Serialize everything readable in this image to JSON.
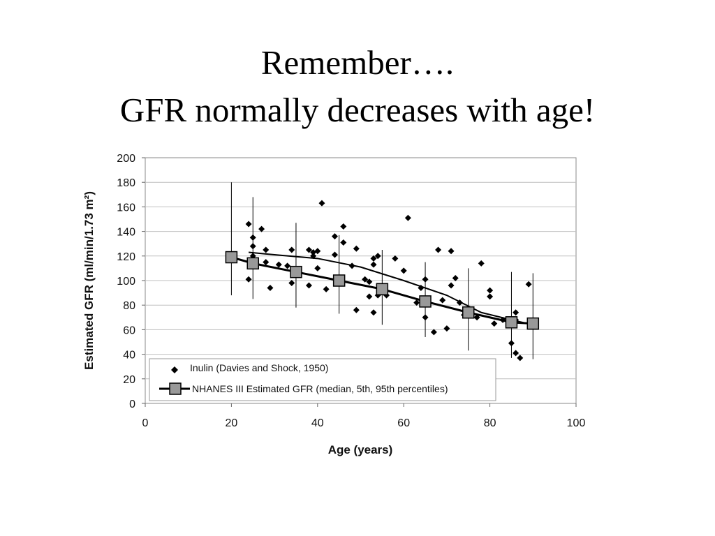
{
  "slide": {
    "title_line1": "Remember….",
    "title_line2": "GFR normally decreases with age!"
  },
  "chart_data": {
    "type": "scatter",
    "xlabel": "Age (years)",
    "ylabel": "Estimated GFR (ml/min/1.73 m²)",
    "xlim": [
      0,
      100
    ],
    "ylim": [
      0,
      200
    ],
    "xticks": [
      0,
      20,
      40,
      60,
      80,
      100
    ],
    "yticks": [
      0,
      20,
      40,
      60,
      80,
      100,
      120,
      140,
      160,
      180,
      200
    ],
    "grid": "horizontal",
    "legend_position": "bottom-left",
    "series": [
      {
        "name": "Inulin (Davies and Shock, 1950)",
        "type": "scatter",
        "marker": "diamond",
        "color": "#000000",
        "points": [
          [
            24,
            146
          ],
          [
            24,
            101
          ],
          [
            25,
            135
          ],
          [
            25,
            128
          ],
          [
            25,
            120
          ],
          [
            27,
            142
          ],
          [
            28,
            125
          ],
          [
            28,
            115
          ],
          [
            29,
            94
          ],
          [
            31,
            113
          ],
          [
            33,
            112
          ],
          [
            34,
            98
          ],
          [
            34,
            125
          ],
          [
            38,
            96
          ],
          [
            38,
            125
          ],
          [
            39,
            120
          ],
          [
            39,
            123
          ],
          [
            40,
            124
          ],
          [
            40,
            110
          ],
          [
            41,
            163
          ],
          [
            42,
            93
          ],
          [
            44,
            136
          ],
          [
            44,
            121
          ],
          [
            46,
            144
          ],
          [
            46,
            131
          ],
          [
            48,
            112
          ],
          [
            49,
            126
          ],
          [
            49,
            76
          ],
          [
            51,
            101
          ],
          [
            52,
            99
          ],
          [
            52,
            87
          ],
          [
            53,
            118
          ],
          [
            53,
            113
          ],
          [
            54,
            120
          ],
          [
            53,
            74
          ],
          [
            54,
            88
          ],
          [
            56,
            88
          ],
          [
            58,
            118
          ],
          [
            60,
            108
          ],
          [
            61,
            151
          ],
          [
            63,
            82
          ],
          [
            64,
            94
          ],
          [
            65,
            70
          ],
          [
            65,
            101
          ],
          [
            67,
            58
          ],
          [
            68,
            125
          ],
          [
            69,
            84
          ],
          [
            70,
            61
          ],
          [
            71,
            124
          ],
          [
            71,
            96
          ],
          [
            72,
            102
          ],
          [
            73,
            82
          ],
          [
            74,
            72
          ],
          [
            77,
            70
          ],
          [
            78,
            114
          ],
          [
            80,
            92
          ],
          [
            80,
            87
          ],
          [
            81,
            65
          ],
          [
            83,
            68
          ],
          [
            85,
            49
          ],
          [
            86,
            74
          ],
          [
            86,
            68
          ],
          [
            86,
            41
          ],
          [
            87,
            37
          ],
          [
            89,
            97
          ]
        ]
      },
      {
        "name": "NHANES III Estimated GFR (median, 5th, 95th percentiles)",
        "type": "line",
        "marker": "square",
        "marker_color": "#999999",
        "color": "#000000",
        "points": [
          {
            "x": 20,
            "median": 119,
            "p5": 88,
            "p95": 180
          },
          {
            "x": 25,
            "median": 114,
            "p5": 85,
            "p95": 168
          },
          {
            "x": 35,
            "median": 107,
            "p5": 78,
            "p95": 147
          },
          {
            "x": 45,
            "median": 100,
            "p5": 73,
            "p95": 137
          },
          {
            "x": 55,
            "median": 93,
            "p5": 64,
            "p95": 125
          },
          {
            "x": 65,
            "median": 83,
            "p5": 54,
            "p95": 115
          },
          {
            "x": 75,
            "median": 74,
            "p5": 43,
            "p95": 110
          },
          {
            "x": 85,
            "median": 66,
            "p5": 37,
            "p95": 107
          },
          {
            "x": 90,
            "median": 65,
            "p5": 36,
            "p95": 106
          }
        ]
      },
      {
        "type": "line",
        "color": "#000000",
        "points": [
          [
            24,
            123
          ],
          [
            30,
            121
          ],
          [
            40,
            118
          ],
          [
            50,
            111
          ],
          [
            60,
            100
          ],
          [
            70,
            88
          ],
          [
            78,
            74
          ],
          [
            85,
            68
          ],
          [
            90,
            64
          ]
        ]
      }
    ]
  }
}
